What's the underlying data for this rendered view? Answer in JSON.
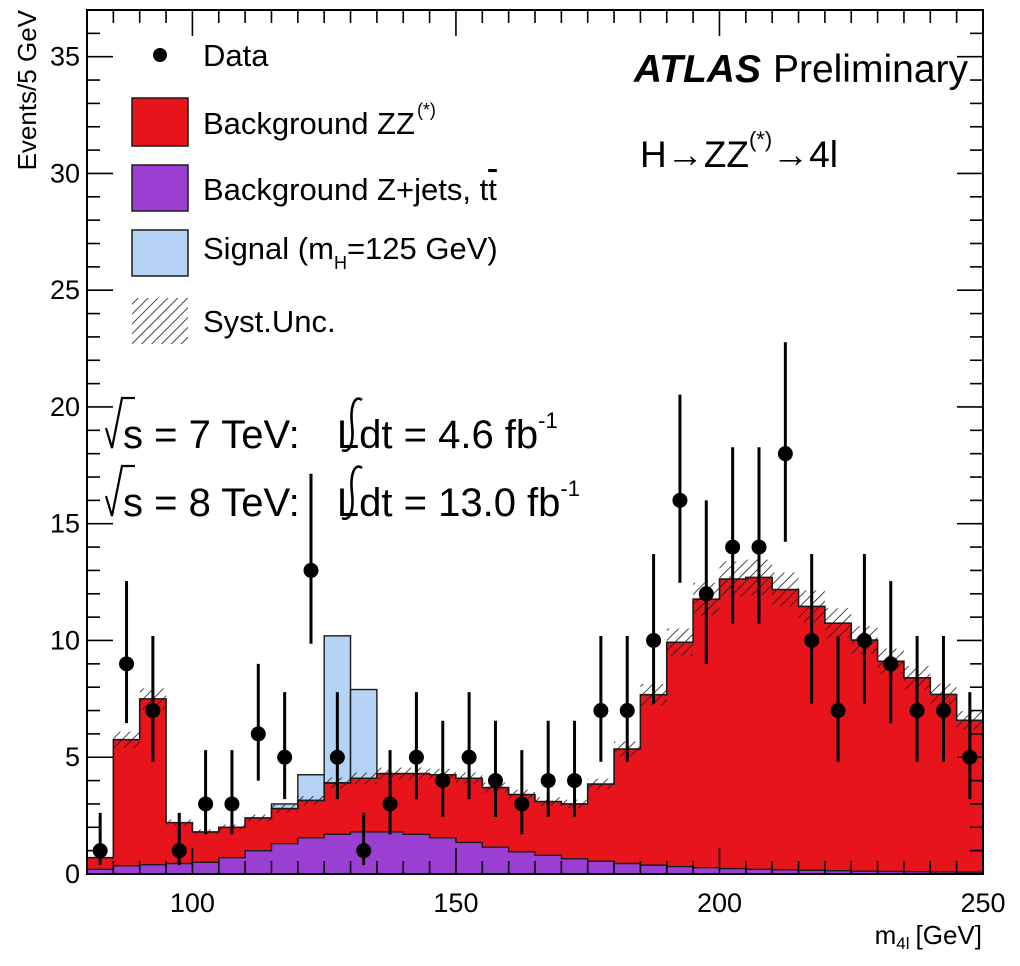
{
  "chart_data": {
    "type": "histogram",
    "xlabel": "m",
    "xlabel_sub": "4l",
    "xlabel_unit": "[GeV]",
    "ylabel": "Events/5 GeV",
    "xlim": [
      80,
      250
    ],
    "ylim": [
      0,
      37
    ],
    "bin_width": 5,
    "x_ticks": [
      100,
      150,
      200,
      250
    ],
    "y_ticks": [
      0,
      5,
      10,
      15,
      20,
      25,
      30,
      35
    ],
    "colors": {
      "zz": "#e8141c",
      "zjets": "#9b3fd3",
      "signal": "#b5d3f5",
      "outline": "#1a1a1a"
    },
    "legend": {
      "position": "top-left",
      "data": "Data",
      "zz": "Background ZZ",
      "zz_sup": "(*)",
      "zjets": "Background Z+jets, t",
      "zjets_tbar": "t",
      "signal_pre": "Signal (m",
      "signal_sub": "H",
      "signal_post": "=125 GeV)",
      "syst": "Syst.Unc."
    },
    "annotations": {
      "experiment": "ATLAS",
      "status": "Preliminary",
      "process_h": "H",
      "process_arrow": "→",
      "process_zz": "ZZ",
      "process_zz_sup": "(*)",
      "process_final": "4l",
      "lumi1_pre": "s = 7 TeV: ",
      "lumi1_post": "Ldt = 4.6 fb",
      "lumi1_sup": "-1",
      "lumi2_pre": "s = 8 TeV: ",
      "lumi2_post": "Ldt = 13.0 fb",
      "lumi2_sup": "-1"
    },
    "bin_edges": [
      80,
      85,
      90,
      95,
      100,
      105,
      110,
      115,
      120,
      125,
      130,
      135,
      140,
      145,
      150,
      155,
      160,
      165,
      170,
      175,
      180,
      185,
      190,
      195,
      200,
      205,
      210,
      215,
      220,
      225,
      230,
      235,
      240,
      245,
      250
    ],
    "series": [
      {
        "name": "Background Z+jets, tt̄",
        "key": "zjets",
        "values": [
          0.2,
          0.35,
          0.4,
          0.45,
          0.5,
          0.7,
          1.0,
          1.3,
          1.55,
          1.7,
          1.8,
          1.8,
          1.7,
          1.55,
          1.35,
          1.15,
          0.95,
          0.8,
          0.65,
          0.55,
          0.45,
          0.38,
          0.32,
          0.27,
          0.23,
          0.2,
          0.18,
          0.16,
          0.14,
          0.12,
          0.11,
          0.1,
          0.09,
          0.08
        ]
      },
      {
        "name": "Background ZZ(*)",
        "key": "zz",
        "values": [
          0.5,
          5.4,
          7.1,
          1.75,
          1.3,
          1.3,
          1.4,
          1.5,
          1.6,
          2.2,
          2.3,
          2.5,
          2.6,
          2.7,
          2.75,
          2.55,
          2.45,
          2.3,
          2.35,
          3.3,
          4.9,
          7.3,
          9.6,
          11.5,
          12.4,
          12.5,
          12.0,
          11.3,
          10.6,
          9.9,
          9.0,
          8.3,
          7.6,
          6.5
        ]
      },
      {
        "name": "Signal (mH=125 GeV)",
        "key": "signal",
        "values": [
          0,
          0,
          0,
          0,
          0,
          0,
          0,
          0.2,
          1.1,
          6.3,
          3.8,
          0,
          0,
          0,
          0,
          0,
          0,
          0,
          0,
          0,
          0,
          0,
          0,
          0,
          0,
          0,
          0,
          0,
          0,
          0,
          0,
          0,
          0,
          0
        ]
      }
    ],
    "syst_unc_fraction": 0.06,
    "data": {
      "name": "Data",
      "x": [
        82.5,
        87.5,
        92.5,
        97.5,
        102.5,
        107.5,
        112.5,
        117.5,
        122.5,
        127.5,
        132.5,
        137.5,
        142.5,
        147.5,
        152.5,
        157.5,
        162.5,
        167.5,
        172.5,
        177.5,
        182.5,
        187.5,
        192.5,
        197.5,
        202.5,
        207.5,
        212.5,
        217.5,
        222.5,
        227.5,
        232.5,
        237.5,
        242.5,
        247.5
      ],
      "y": [
        1,
        9,
        7,
        1,
        3,
        3,
        6,
        5,
        13,
        5,
        1,
        3,
        5,
        4,
        5,
        4,
        3,
        4,
        4,
        7,
        7,
        10,
        16,
        12,
        14,
        14,
        18,
        10,
        7,
        10,
        9,
        7,
        7,
        5
      ]
    }
  }
}
